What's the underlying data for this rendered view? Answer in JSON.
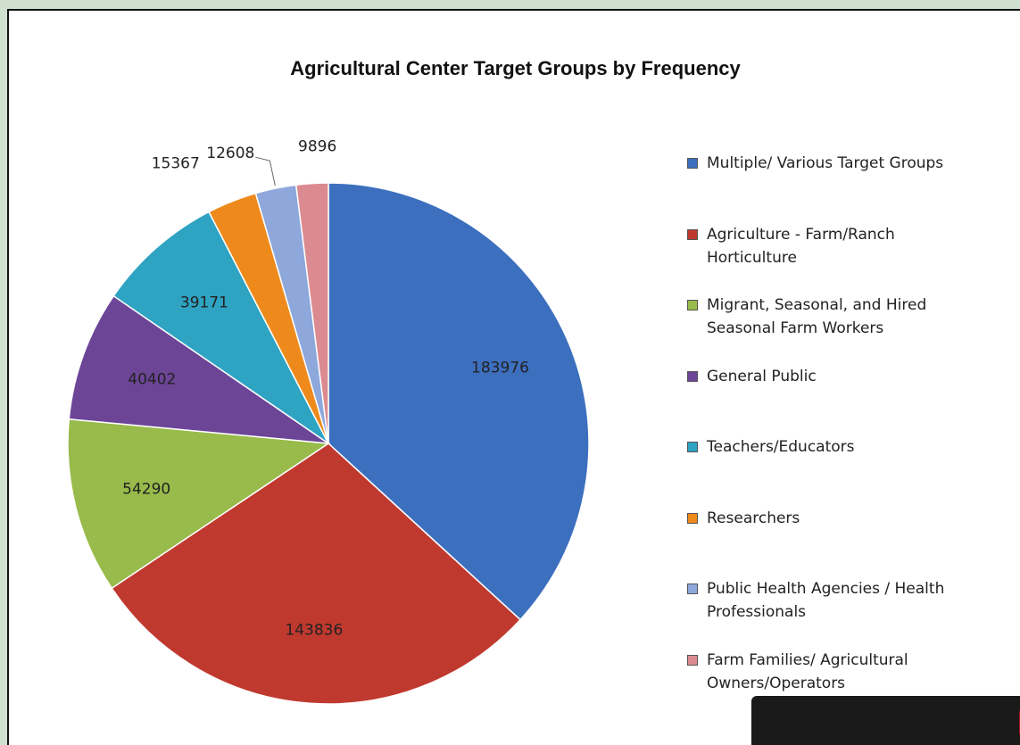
{
  "chart_data": {
    "type": "pie",
    "title": "Agricultural Center Target Groups by Frequency",
    "categories": [
      "Multiple/ Various Target Groups",
      "Agriculture - Farm/Ranch Horticulture",
      "Migrant, Seasonal, and Hired Seasonal Farm Workers",
      "General Public",
      "Teachers/Educators",
      "Researchers",
      "Public Health Agencies / Health Professionals",
      "Farm Families/ Agricultural Owners/Operators"
    ],
    "values": [
      183976,
      143836,
      54290,
      40402,
      39171,
      15367,
      12608,
      9896
    ],
    "colors": [
      "#3d6fbf",
      "#c0392f",
      "#98bb4b",
      "#6c4597",
      "#2ea3c2",
      "#ee8a1c",
      "#8ea8dc",
      "#db8a90"
    ]
  }
}
